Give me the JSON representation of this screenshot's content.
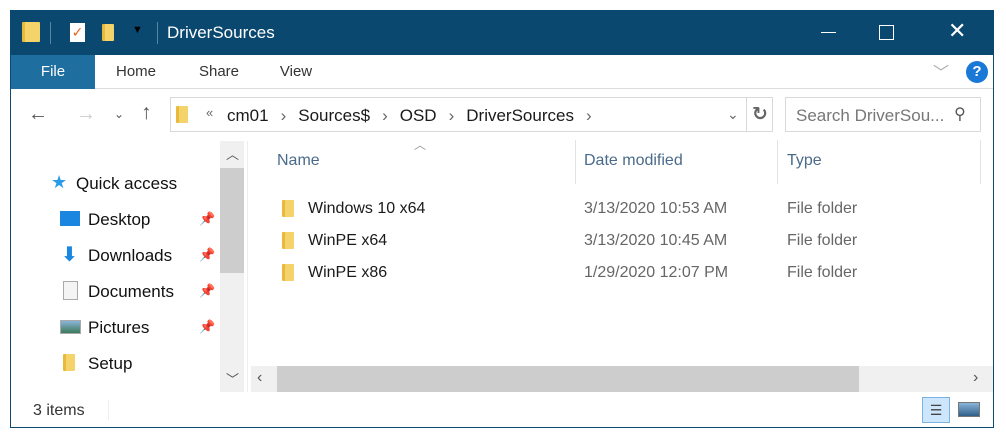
{
  "window": {
    "title": "DriverSources",
    "minimize_icon": "minimize-icon",
    "maximize_icon": "maximize-icon",
    "close_icon": "close-icon"
  },
  "ribbon": {
    "tabs": [
      "File",
      "Home",
      "Share",
      "View"
    ],
    "help": "?"
  },
  "address": {
    "overflow": "«",
    "crumbs": [
      "cm01",
      "Sources$",
      "OSD",
      "DriverSources"
    ],
    "search_placeholder": "Search DriverSou..."
  },
  "nav": {
    "quick_access": "Quick access",
    "items": [
      {
        "label": "Desktop",
        "pinned": true
      },
      {
        "label": "Downloads",
        "pinned": true
      },
      {
        "label": "Documents",
        "pinned": true
      },
      {
        "label": "Pictures",
        "pinned": true
      },
      {
        "label": "Setup",
        "pinned": false
      }
    ]
  },
  "columns": [
    "Name",
    "Date modified",
    "Type"
  ],
  "files": [
    {
      "name": "Windows 10 x64",
      "date": "3/13/2020 10:53 AM",
      "type": "File folder"
    },
    {
      "name": "WinPE x64",
      "date": "3/13/2020 10:45 AM",
      "type": "File folder"
    },
    {
      "name": "WinPE x86",
      "date": "1/29/2020 12:07 PM",
      "type": "File folder"
    }
  ],
  "status": {
    "count": "3 items"
  },
  "colors": {
    "titlebar": "#0b4870",
    "file_tab": "#1e6ea0",
    "accent": "#1a78d6"
  }
}
